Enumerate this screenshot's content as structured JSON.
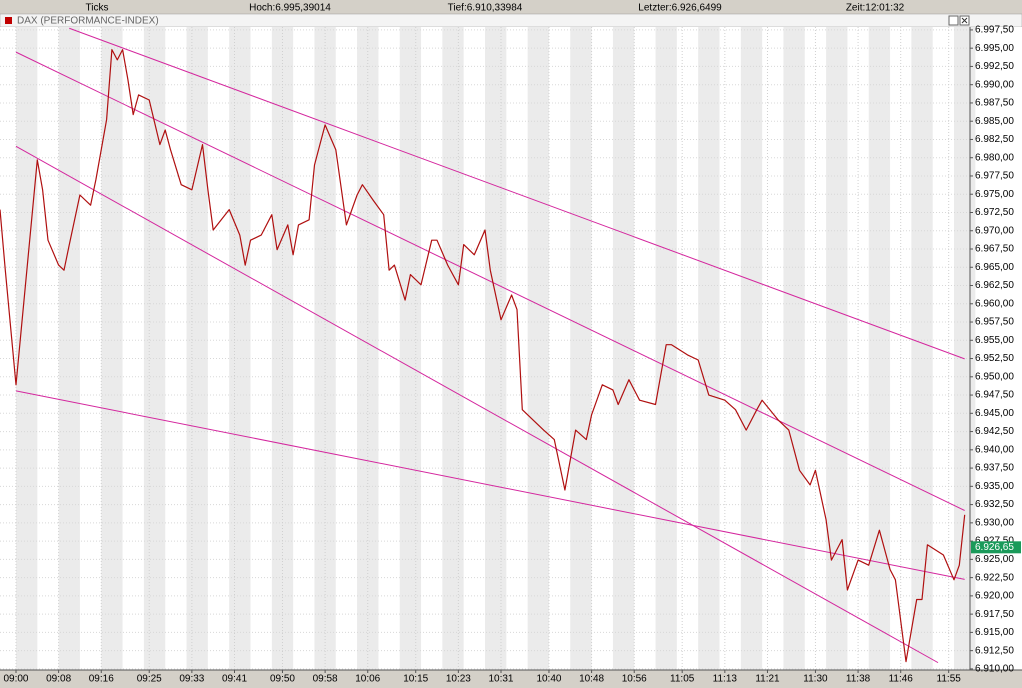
{
  "chart_data": {
    "type": "line",
    "header": [
      "Ticks",
      "Hoch:6.995,39014",
      "Tief:6.910,33984",
      "Letzter:6.926,6499",
      "Zeit:12:01:32"
    ],
    "title": "DAX (PERFORMANCE-INDEX)",
    "color": "#b01010",
    "x": [
      "08:57",
      "08:58",
      "09:00",
      "09:04",
      "09:05",
      "09:06",
      "09:08",
      "09:09",
      "09:10",
      "09:12",
      "09:14",
      "09:15",
      "09:17",
      "09:18",
      "09:19",
      "09:20",
      "09:21",
      "09:22",
      "09:23",
      "09:25",
      "09:27",
      "09:28",
      "09:29",
      "09:31",
      "09:33",
      "09:35",
      "09:36",
      "09:37",
      "09:40",
      "09:42",
      "09:43",
      "09:44",
      "09:46",
      "09:48",
      "09:49",
      "09:51",
      "09:52",
      "09:53",
      "09:55",
      "09:56",
      "09:58",
      "10:00",
      "10:02",
      "10:04",
      "10:05",
      "10:07",
      "10:09",
      "10:10",
      "10:11",
      "10:13",
      "10:14",
      "10:16",
      "10:18",
      "10:19",
      "10:21",
      "10:23",
      "10:24",
      "10:26",
      "10:28",
      "10:29",
      "10:31",
      "10:33",
      "10:34",
      "10:35",
      "10:37",
      "10:39",
      "10:41",
      "10:43",
      "10:45",
      "10:47",
      "10:48",
      "10:50",
      "10:52",
      "10:53",
      "10:55",
      "10:57",
      "11:00",
      "11:02",
      "11:03",
      "11:06",
      "11:08",
      "11:10",
      "11:13",
      "11:15",
      "11:17",
      "11:19",
      "11:20",
      "11:23",
      "11:25",
      "11:27",
      "11:29",
      "11:30",
      "11:32",
      "11:33",
      "11:35",
      "11:36",
      "11:38",
      "11:40",
      "11:42",
      "11:44",
      "11:45",
      "11:47",
      "11:49",
      "11:50",
      "11:51",
      "11:54",
      "11:56",
      "11:57",
      "11:58"
    ],
    "values": [
      6972.9,
      6964.6,
      6948.9,
      6979.7,
      6975.6,
      6968.7,
      6965.3,
      6964.6,
      6968.1,
      6974.9,
      6973.5,
      6977.0,
      6985.2,
      6994.8,
      6993.4,
      6994.8,
      6990.7,
      6985.9,
      6988.6,
      6987.9,
      6981.8,
      6983.8,
      6981.1,
      6976.3,
      6975.6,
      6981.8,
      6975.6,
      6970.1,
      6972.9,
      6969.4,
      6965.3,
      6968.7,
      6969.4,
      6972.2,
      6967.4,
      6970.8,
      6966.7,
      6970.8,
      6971.5,
      6979.0,
      6984.5,
      6981.1,
      6970.8,
      6974.9,
      6976.3,
      6974.2,
      6972.2,
      6964.6,
      6965.3,
      6960.5,
      6964.0,
      6962.6,
      6968.7,
      6968.7,
      6965.3,
      6962.6,
      6968.1,
      6966.7,
      6970.1,
      6964.6,
      6957.8,
      6961.2,
      6959.2,
      6945.5,
      6944.1,
      6942.7,
      6941.4,
      6934.5,
      6942.7,
      6941.4,
      6944.8,
      6948.9,
      6948.2,
      6946.2,
      6949.6,
      6946.8,
      6946.2,
      6954.4,
      6954.4,
      6953.0,
      6952.3,
      6947.5,
      6946.8,
      6945.5,
      6942.7,
      6945.5,
      6946.8,
      6944.1,
      6942.7,
      6937.2,
      6935.2,
      6937.2,
      6930.4,
      6924.9,
      6927.7,
      6920.8,
      6924.9,
      6924.2,
      6929.0,
      6923.6,
      6922.2,
      6911.0,
      6919.5,
      6919.5,
      6927.0,
      6925.6,
      6922.2,
      6924.2,
      6931.1
    ],
    "trendlines": [
      {
        "x": [
          "09:10",
          "11:58"
        ],
        "y": [
          6997.73,
          6952.45
        ]
      },
      {
        "x": [
          "09:00",
          "11:58"
        ],
        "y": [
          6994.46,
          6931.69
        ]
      },
      {
        "x": [
          "09:00",
          "11:53"
        ],
        "y": [
          6981.56,
          6910.86
        ]
      },
      {
        "x": [
          "09:00",
          "11:58"
        ],
        "y": [
          6948.07,
          6922.26
        ]
      }
    ],
    "trendline_color": "#d4279e",
    "last": {
      "value": 6926.65,
      "label": "6.926,65"
    },
    "last_color": "#1a9a5a",
    "xlim": [
      "08:57",
      "11:59"
    ],
    "xticks": [
      "09:00",
      "09:08",
      "09:16",
      "09:25",
      "09:33",
      "09:41",
      "09:50",
      "09:58",
      "10:06",
      "10:15",
      "10:23",
      "10:31",
      "10:40",
      "10:48",
      "10:56",
      "11:05",
      "11:13",
      "11:21",
      "11:30",
      "11:38",
      "11:46",
      "11:55"
    ],
    "ylim": [
      6909.85,
      6997.9
    ],
    "yticks": [
      {
        "value": 6910,
        "label": "6.910,00"
      },
      {
        "value": 6912.5,
        "label": "6.912,50"
      },
      {
        "value": 6915,
        "label": "6.915,00"
      },
      {
        "value": 6917.5,
        "label": "6.917,50"
      },
      {
        "value": 6920,
        "label": "6.920,00"
      },
      {
        "value": 6922.5,
        "label": "6.922,50"
      },
      {
        "value": 6925,
        "label": "6.925,00"
      },
      {
        "value": 6927.5,
        "label": "6.927,50"
      },
      {
        "value": 6930,
        "label": "6.930,00"
      },
      {
        "value": 6932.5,
        "label": "6.932,50"
      },
      {
        "value": 6935,
        "label": "6.935,00"
      },
      {
        "value": 6937.5,
        "label": "6.937,50"
      },
      {
        "value": 6940,
        "label": "6.940,00"
      },
      {
        "value": 6942.5,
        "label": "6.942,50"
      },
      {
        "value": 6945,
        "label": "6.945,00"
      },
      {
        "value": 6947.5,
        "label": "6.947,50"
      },
      {
        "value": 6950,
        "label": "6.950,00"
      },
      {
        "value": 6952.5,
        "label": "6.952,50"
      },
      {
        "value": 6955,
        "label": "6.955,00"
      },
      {
        "value": 6957.5,
        "label": "6.957,50"
      },
      {
        "value": 6960,
        "label": "6.960,00"
      },
      {
        "value": 6962.5,
        "label": "6.962,50"
      },
      {
        "value": 6965,
        "label": "6.965,00"
      },
      {
        "value": 6967.5,
        "label": "6.967,50"
      },
      {
        "value": 6970,
        "label": "6.970,00"
      },
      {
        "value": 6972.5,
        "label": "6.972,50"
      },
      {
        "value": 6975,
        "label": "6.975,00"
      },
      {
        "value": 6977.5,
        "label": "6.977,50"
      },
      {
        "value": 6980,
        "label": "6.980,00"
      },
      {
        "value": 6982.5,
        "label": "6.982,50"
      },
      {
        "value": 6985,
        "label": "6.985,00"
      },
      {
        "value": 6987.5,
        "label": "6.987,50"
      },
      {
        "value": 6990,
        "label": "6.990,00"
      },
      {
        "value": 6992.5,
        "label": "6.992,50"
      },
      {
        "value": 6995,
        "label": "6.995,00"
      },
      {
        "value": 6997.5,
        "label": "6.997,50"
      }
    ],
    "grid": true
  }
}
